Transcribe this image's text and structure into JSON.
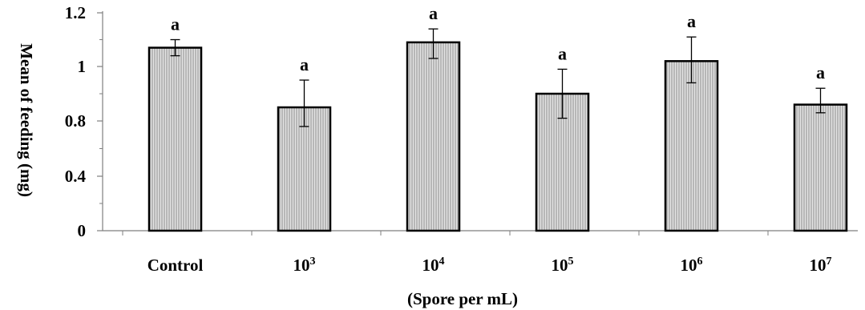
{
  "chart_data": {
    "type": "bar",
    "categories": [
      {
        "base": "Control",
        "sup": ""
      },
      {
        "base": "10",
        "sup": "3"
      },
      {
        "base": "10",
        "sup": "4"
      },
      {
        "base": "10",
        "sup": "5"
      },
      {
        "base": "10",
        "sup": "6"
      },
      {
        "base": "10",
        "sup": "7"
      }
    ],
    "values": [
      1.07,
      0.85,
      1.09,
      0.9,
      1.02,
      0.86
    ],
    "error_low": [
      1.04,
      0.76,
      1.03,
      0.81,
      0.94,
      0.83
    ],
    "error_high": [
      1.1,
      0.95,
      1.14,
      0.99,
      1.11,
      0.92
    ],
    "significance": [
      "a",
      "a",
      "a",
      "a",
      "a",
      "a"
    ],
    "y_ticks": [
      {
        "value": 0,
        "label": "0"
      },
      {
        "value": 0.4,
        "label": "0.4"
      },
      {
        "value": 0.8,
        "label": "0.8"
      },
      {
        "value": 1,
        "label": "1"
      },
      {
        "value": 1.2,
        "label": "1.2"
      }
    ],
    "y_axis_breaks": [
      0,
      0.4,
      0.8,
      1.0,
      1.2
    ],
    "xlabel": "(Spore per mL)",
    "ylabel": "Mean of feeding (mg)",
    "grid": false,
    "bar_fill": "#c8c8c8",
    "bar_stroke": "#000000"
  }
}
